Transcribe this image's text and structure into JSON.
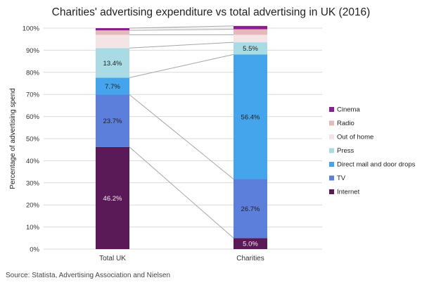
{
  "chart_data": {
    "type": "bar",
    "stacked": true,
    "title": "Charities' advertising expenditure vs total advertising in UK (2016)",
    "xlabel": "",
    "ylabel": "Percentage of advertising spend",
    "ylim": [
      0,
      100
    ],
    "y_ticks": [
      "0%",
      "10%",
      "20%",
      "30%",
      "40%",
      "50%",
      "60%",
      "70%",
      "80%",
      "90%",
      "100%"
    ],
    "grid": true,
    "legend_position": "right",
    "categories": [
      "Total UK",
      "Charities"
    ],
    "series": [
      {
        "name": "Internet",
        "values": [
          46.2,
          5.0
        ],
        "labels": [
          "46.2%",
          "5.0%"
        ],
        "color": "#5a1a57"
      },
      {
        "name": "TV",
        "values": [
          23.7,
          26.7
        ],
        "labels": [
          "23.7%",
          "26.7%"
        ],
        "color": "#5b7fda"
      },
      {
        "name": "Direct mail and door drops",
        "values": [
          7.7,
          56.4
        ],
        "labels": [
          "7.7%",
          "56.4%"
        ],
        "color": "#44a5ec"
      },
      {
        "name": "Press",
        "values": [
          13.4,
          5.5
        ],
        "labels": [
          "13.4%",
          "5.5%"
        ],
        "color": "#a9dbe4"
      },
      {
        "name": "Out of home",
        "values": [
          6.0,
          3.4
        ],
        "labels": [
          "",
          ""
        ],
        "color": "#f5e4e6"
      },
      {
        "name": "Radio",
        "values": [
          2.0,
          2.5
        ],
        "labels": [
          "",
          ""
        ],
        "color": "#e5b9b9"
      },
      {
        "name": "Cinema",
        "values": [
          1.0,
          1.5
        ],
        "labels": [
          "",
          ""
        ],
        "color": "#8c1f8e"
      }
    ],
    "source": "Source: Statista, Advertising Association and Nielsen"
  }
}
